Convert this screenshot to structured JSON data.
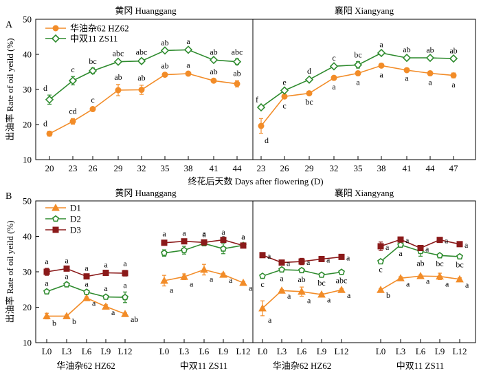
{
  "colors": {
    "orange": "#F28C28",
    "green": "#2E8B2E",
    "red": "#8B1A1A",
    "axis": "#000000"
  },
  "chart_data": [
    {
      "type": "line",
      "panel": "A",
      "ylabel": "出油率 Rate of oil yeild (%)",
      "xlabel": "终花后天数 Days after flowering (D)",
      "ylim": [
        10,
        50
      ],
      "yticks": [
        10,
        20,
        30,
        40,
        50
      ],
      "subplots": [
        {
          "title": "黄冈 Huanggang",
          "x": [
            20,
            23,
            26,
            29,
            32,
            35,
            38,
            41,
            44
          ],
          "series": [
            {
              "name": "华油杂62 HZ62",
              "color": "orange",
              "marker": "circle",
              "values": [
                17.4,
                20.9,
                24.4,
                29.8,
                29.9,
                34.2,
                34.5,
                32.5,
                31.6
              ],
              "errors": [
                0.7,
                0.8,
                0.5,
                1.6,
                1.3,
                0.4,
                0.3,
                0.4,
                0.9
              ],
              "labels": [
                "d",
                "cd",
                "c",
                "ab",
                "ab",
                "ab",
                "a",
                "ab",
                "ab"
              ]
            },
            {
              "name": "中双11 ZS11",
              "color": "green",
              "marker": "diamond",
              "values": [
                27.1,
                32.5,
                35.3,
                37.9,
                38.1,
                41.1,
                41.3,
                38.4,
                37.9
              ],
              "errors": [
                1.3,
                1.2,
                0.8,
                0.4,
                0.6,
                0.3,
                0.5,
                0.3,
                0.8
              ],
              "labels": [
                "d",
                "c",
                "bc",
                "abc",
                "abc",
                "ab",
                "a",
                "ab",
                "abc"
              ]
            }
          ]
        },
        {
          "title": "襄阳 Xiangyang",
          "x": [
            23,
            26,
            29,
            32,
            35,
            38,
            41,
            44,
            47
          ],
          "series": [
            {
              "name": "华油杂62 HZ62",
              "color": "orange",
              "marker": "circle",
              "values": [
                19.6,
                28.0,
                28.9,
                33.3,
                34.6,
                36.8,
                35.5,
                34.6,
                34.0
              ],
              "errors": [
                2.1,
                0.6,
                0.5,
                0.6,
                0.6,
                0.6,
                0.3,
                0.6,
                0.7
              ],
              "labels": [
                "d",
                "c",
                "bc",
                "a",
                "a",
                "a",
                "a",
                "a",
                "a"
              ]
            },
            {
              "name": "中双11 ZS11",
              "color": "green",
              "marker": "diamond",
              "values": [
                24.9,
                29.7,
                32.8,
                36.6,
                37.0,
                40.4,
                39.0,
                39.0,
                38.8
              ],
              "errors": [
                0.3,
                0.4,
                0.5,
                0.5,
                0.9,
                0.5,
                0.4,
                0.3,
                0.3
              ],
              "labels": [
                "f",
                "e",
                "d",
                "c",
                "bc",
                "a",
                "ab",
                "ab",
                "ab"
              ]
            }
          ]
        }
      ],
      "legend": [
        "华油杂62 HZ62",
        "中双11 ZS11"
      ],
      "legend_position": "top-left"
    },
    {
      "type": "line",
      "panel": "B",
      "ylabel": "出油率 Rate of oil yeild (%)",
      "ylim": [
        10,
        50
      ],
      "yticks": [
        10,
        20,
        30,
        40,
        50
      ],
      "categories": [
        "L0",
        "L3",
        "L6",
        "L9",
        "L12"
      ],
      "subplots": [
        {
          "title": "黄冈 Huanggang",
          "groups": [
            {
              "label": "华油杂62 HZ62",
              "series": [
                {
                  "name": "D1",
                  "color": "orange",
                  "marker": "triangle",
                  "values": [
                    17.5,
                    17.5,
                    22.6,
                    20.2,
                    18.1
                  ],
                  "errors": [
                    0.8,
                    0.3,
                    0.3,
                    0.5,
                    0.3
                  ],
                  "labels": [
                    "b",
                    "b",
                    "a",
                    "a",
                    "ab"
                  ]
                },
                {
                  "name": "D2",
                  "color": "green",
                  "marker": "pentagon",
                  "values": [
                    24.4,
                    26.4,
                    24.3,
                    22.9,
                    22.8
                  ],
                  "errors": [
                    0.5,
                    0.4,
                    0.4,
                    0.5,
                    1.5
                  ],
                  "labels": [
                    "a",
                    "a",
                    "a",
                    "a",
                    "a"
                  ]
                },
                {
                  "name": "D3",
                  "color": "red",
                  "marker": "square",
                  "values": [
                    30.0,
                    30.9,
                    28.7,
                    29.7,
                    29.6
                  ],
                  "errors": [
                    1.0,
                    0.4,
                    0.4,
                    0.4,
                    0.8
                  ],
                  "labels": [
                    "a",
                    "a",
                    "a",
                    "a",
                    "a"
                  ]
                }
              ]
            },
            {
              "label": "中双11 ZS11",
              "series": [
                {
                  "name": "D1",
                  "color": "orange",
                  "marker": "triangle",
                  "values": [
                    27.5,
                    28.6,
                    30.6,
                    29.2,
                    26.9
                  ],
                  "errors": [
                    1.5,
                    0.8,
                    1.5,
                    0.4,
                    0.3
                  ],
                  "labels": [
                    "a",
                    "a",
                    "a",
                    "a",
                    "a"
                  ]
                },
                {
                  "name": "D2",
                  "color": "green",
                  "marker": "pentagon",
                  "values": [
                    35.3,
                    36.1,
                    38.0,
                    36.5,
                    37.5
                  ],
                  "errors": [
                    0.9,
                    1.1,
                    0.6,
                    1.4,
                    0.5
                  ],
                  "labels": [
                    "a",
                    "a",
                    "a",
                    "a",
                    "a"
                  ]
                },
                {
                  "name": "D3",
                  "color": "red",
                  "marker": "square",
                  "values": [
                    38.2,
                    38.6,
                    38.3,
                    39.0,
                    37.4
                  ],
                  "errors": [
                    0.6,
                    0.4,
                    0.6,
                    0.3,
                    0.6
                  ],
                  "labels": [
                    "a",
                    "a",
                    "a",
                    "a",
                    "a"
                  ]
                }
              ]
            }
          ]
        },
        {
          "title": "襄阳 Xiangyang",
          "groups": [
            {
              "label": "华油杂62 HZ62",
              "series": [
                {
                  "name": "D1",
                  "color": "orange",
                  "marker": "triangle",
                  "values": [
                    19.7,
                    24.7,
                    24.4,
                    23.6,
                    24.9
                  ],
                  "errors": [
                    2.1,
                    0.3,
                    1.3,
                    0.3,
                    0.3
                  ],
                  "labels": [
                    "a",
                    "a",
                    "a",
                    "a",
                    "a"
                  ]
                },
                {
                  "name": "D2",
                  "color": "green",
                  "marker": "pentagon",
                  "values": [
                    28.8,
                    30.6,
                    30.4,
                    29.1,
                    29.9
                  ],
                  "errors": [
                    0.4,
                    0.5,
                    0.6,
                    0.3,
                    0.4
                  ],
                  "labels": [
                    "c",
                    "a",
                    "ab",
                    "bc",
                    "abc"
                  ]
                },
                {
                  "name": "D3",
                  "color": "red",
                  "marker": "square",
                  "values": [
                    34.7,
                    32.6,
                    32.9,
                    33.6,
                    34.2
                  ],
                  "errors": [
                    0.4,
                    0.3,
                    0.9,
                    0.3,
                    0.3
                  ],
                  "labels": [
                    "a",
                    "a",
                    "a",
                    "a",
                    "a"
                  ]
                }
              ]
            },
            {
              "label": "中双11 ZS11",
              "series": [
                {
                  "name": "D1",
                  "color": "orange",
                  "marker": "triangle",
                  "values": [
                    24.9,
                    28.2,
                    28.8,
                    28.7,
                    27.9
                  ],
                  "errors": [
                    0.3,
                    0.4,
                    0.3,
                    0.9,
                    0.4
                  ],
                  "labels": [
                    "b",
                    "a",
                    "a",
                    "a",
                    "a"
                  ]
                },
                {
                  "name": "D2",
                  "color": "green",
                  "marker": "pentagon",
                  "values": [
                    32.9,
                    37.6,
                    35.8,
                    34.6,
                    34.3
                  ],
                  "errors": [
                    0.3,
                    0.4,
                    1.4,
                    0.3,
                    0.3
                  ],
                  "labels": [
                    "c",
                    "a",
                    "ab",
                    "bc",
                    "bc"
                  ]
                },
                {
                  "name": "D3",
                  "color": "red",
                  "marker": "square",
                  "values": [
                    37.2,
                    39.1,
                    36.7,
                    39.0,
                    37.8
                  ],
                  "errors": [
                    1.2,
                    0.3,
                    0.7,
                    0.3,
                    0.3
                  ],
                  "labels": [
                    "a",
                    "a",
                    "a",
                    "a",
                    "a"
                  ]
                }
              ]
            }
          ]
        }
      ],
      "legend": [
        "D1",
        "D2",
        "D3"
      ],
      "legend_position": "top-left"
    }
  ]
}
